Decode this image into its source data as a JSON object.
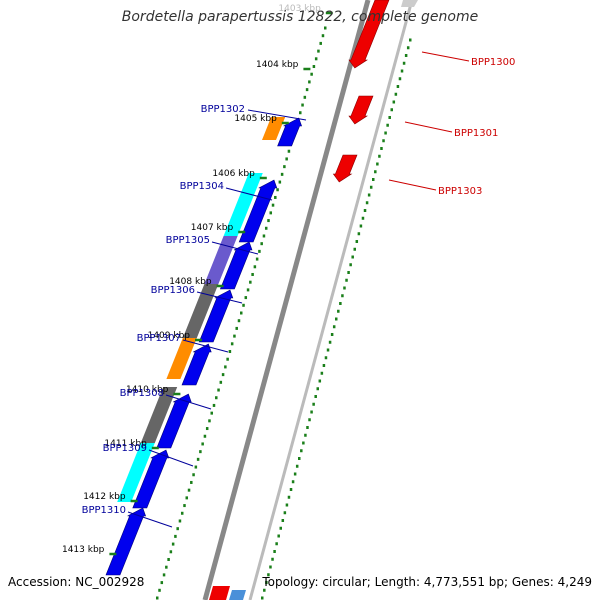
{
  "title": "Bordetella parapertussis 12822, complete genome",
  "accession": "Accession: NC_002928",
  "summary": "Topology: circular; Length: 4,773,551 bp; Genes: 4,249",
  "colors": {
    "forward_gene": "#0000ee",
    "reverse_gene": "#ee0000",
    "forward_label": "#00009b",
    "reverse_label": "#cc0000",
    "backbone": "#888888",
    "gc_dots": "#1a7f1a",
    "tick_label": "#000000"
  },
  "ticks": [
    {
      "label": "1403 kbp",
      "faded": true
    },
    {
      "label": "1404 kbp"
    },
    {
      "label": "1405 kbp"
    },
    {
      "label": "1406 kbp"
    },
    {
      "label": "1407 kbp"
    },
    {
      "label": "1408 kbp"
    },
    {
      "label": "1409 kbp"
    },
    {
      "label": "1410 kbp"
    },
    {
      "label": "1411 kbp"
    },
    {
      "label": "1412 kbp"
    },
    {
      "label": "1413 kbp"
    }
  ],
  "forward_genes": [
    {
      "name": "BPP1302",
      "cog_color": "#ff8c00"
    },
    {
      "name": "BPP1304",
      "cog_color": "#00ffff"
    },
    {
      "name": "BPP1305",
      "cog_color": "#6a5acd"
    },
    {
      "name": "BPP1306",
      "cog_color": "#666666"
    },
    {
      "name": "BPP1307",
      "cog_color": "#ff8c00"
    },
    {
      "name": "BPP1308",
      "cog_color": "#666666"
    },
    {
      "name": "BPP1309",
      "cog_color": "#00ffff"
    },
    {
      "name": "BPP1310",
      "cog_color": null
    }
  ],
  "reverse_genes": [
    {
      "name": "BPP1300"
    },
    {
      "name": "BPP1301"
    },
    {
      "name": "BPP1303"
    }
  ]
}
